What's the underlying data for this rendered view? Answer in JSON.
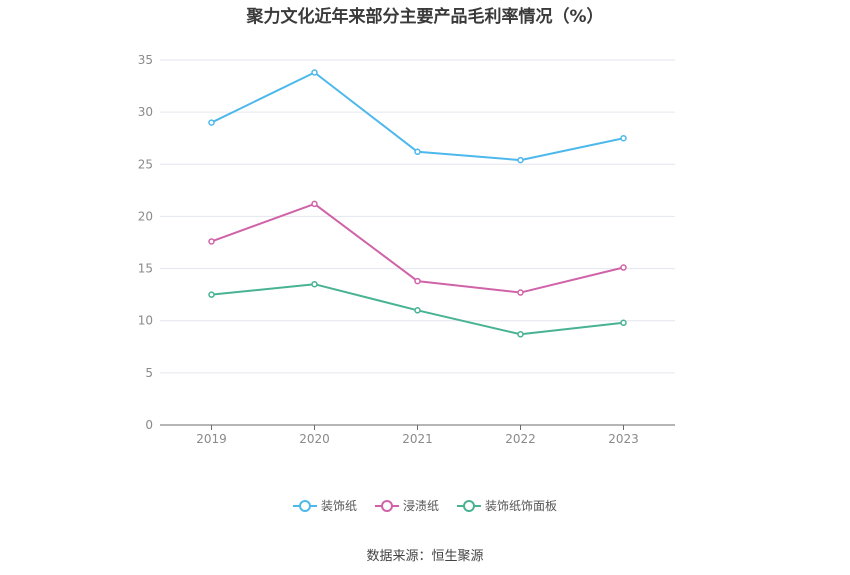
{
  "title": "聚力文化近年来部分主要产品毛利率情况（%）",
  "source": "数据来源：恒生聚源",
  "colors": {
    "series": [
      "#4db8ec",
      "#d063a8",
      "#48b393"
    ]
  },
  "chart_data": {
    "type": "line",
    "title": "聚力文化近年来部分主要产品毛利率情况（%）",
    "x": [
      "2019",
      "2020",
      "2021",
      "2022",
      "2023"
    ],
    "ylim": [
      0,
      35
    ],
    "yticks": [
      0,
      5,
      10,
      15,
      20,
      25,
      30,
      35
    ],
    "grid": true,
    "legend_position": "bottom",
    "series": [
      {
        "name": "装饰纸",
        "values": [
          29.0,
          33.8,
          26.2,
          25.4,
          27.5
        ]
      },
      {
        "name": "浸渍纸",
        "values": [
          17.6,
          21.2,
          13.8,
          12.7,
          15.1
        ]
      },
      {
        "name": "装饰纸饰面板",
        "values": [
          12.5,
          13.5,
          11.0,
          8.7,
          9.8
        ]
      }
    ]
  }
}
